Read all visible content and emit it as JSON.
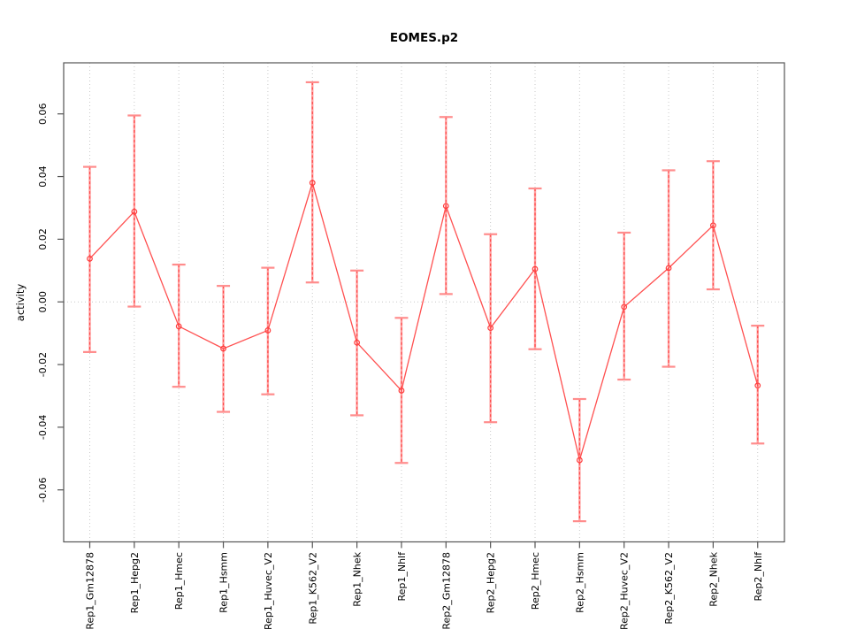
{
  "chart_data": {
    "type": "line",
    "title": "EOMES.p2",
    "xlabel": "",
    "ylabel": "activity",
    "categories": [
      "Rep1_Gm12878",
      "Rep1_Hepg2",
      "Rep1_Hmec",
      "Rep1_Hsmm",
      "Rep1_Huvec_V2",
      "Rep1_K562_V2",
      "Rep1_Nhek",
      "Rep1_Nhlf",
      "Rep2_Gm12878",
      "Rep2_Hepg2",
      "Rep2_Hmec",
      "Rep2_Hsmm",
      "Rep2_Huvec_V2",
      "Rep2_K562_V2",
      "Rep2_Nhek",
      "Rep2_Nhlf"
    ],
    "series": [
      {
        "name": "activity",
        "values": [
          0.0138,
          0.0288,
          -0.0078,
          -0.0149,
          -0.0091,
          0.038,
          -0.013,
          -0.0283,
          0.0306,
          -0.0083,
          0.0105,
          -0.0505,
          -0.0016,
          0.0108,
          0.0244,
          -0.0267
        ],
        "error_upper": [
          0.0431,
          0.0595,
          0.0119,
          0.0051,
          0.0109,
          0.0701,
          0.01,
          -0.0051,
          0.059,
          0.0216,
          0.0362,
          -0.031,
          0.0221,
          0.042,
          0.0449,
          -0.0076
        ],
        "error_lower": [
          -0.016,
          -0.0015,
          -0.0271,
          -0.0351,
          -0.0295,
          0.0062,
          -0.0362,
          -0.0514,
          0.0025,
          -0.0384,
          -0.0151,
          -0.07,
          -0.0248,
          -0.0207,
          0.004,
          -0.0452
        ]
      }
    ],
    "yticks": {
      "values": [
        0.06,
        0.04,
        0.02,
        0.0,
        -0.02,
        -0.04,
        -0.06
      ],
      "labels": [
        "0.06",
        "0.04",
        "0.02",
        "0.00",
        "-0.02",
        "-0.04",
        "-0.06"
      ]
    },
    "ylim": [
      -0.0766,
      0.0763
    ],
    "grid": {
      "vertical_per_category": true,
      "horizontal_at_zero": true,
      "style": "dotted"
    },
    "legend": "none",
    "marker": "open-circle",
    "colors": {
      "series_line": "#ff5050",
      "marker_stroke": "#ff3d3d",
      "error_bar": "#ffa0a0",
      "error_cap": "#ff8c8c",
      "error_dash": "#ff4343",
      "grid": "#c9c9c9",
      "frame": "#555555",
      "text": "#000000",
      "background": "#ffffff"
    }
  }
}
